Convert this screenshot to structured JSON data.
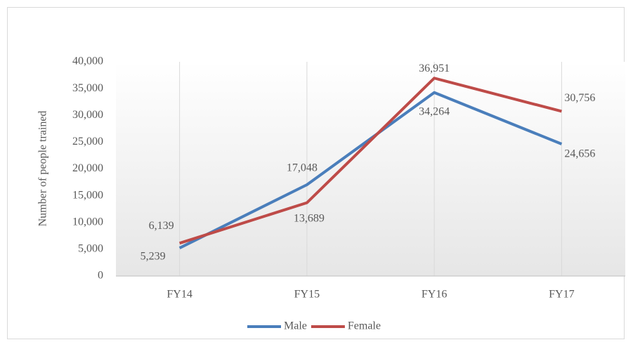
{
  "chart_data": {
    "type": "line",
    "y_label": "Number of people trained",
    "categories": [
      "FY14",
      "FY15",
      "FY16",
      "FY17"
    ],
    "series": [
      {
        "name": "Male",
        "color": "#4a7ebb",
        "values": [
          5239,
          17048,
          34264,
          24656
        ],
        "value_labels": [
          "5,239",
          "17,048",
          "34,264",
          "24,656"
        ]
      },
      {
        "name": "Female",
        "color": "#be4b48",
        "values": [
          6139,
          13689,
          36951,
          30756
        ],
        "value_labels": [
          "6,139",
          "13,689",
          "36,951",
          "30,756"
        ]
      }
    ],
    "ylim": [
      0,
      40000
    ],
    "yticks": [
      0,
      {
        "value": 5000,
        "label": "5,000"
      },
      {
        "value": 10000,
        "label": "10,000"
      },
      {
        "value": 15000,
        "label": "15,000"
      },
      {
        "value": 20000,
        "label": "20,000"
      },
      {
        "value": 25000,
        "label": "25,000"
      },
      {
        "value": 30000,
        "label": "30,000"
      },
      {
        "value": 35000,
        "label": "35,000"
      },
      {
        "value": 40000,
        "label": "40,000"
      }
    ],
    "legend": "bottom"
  }
}
